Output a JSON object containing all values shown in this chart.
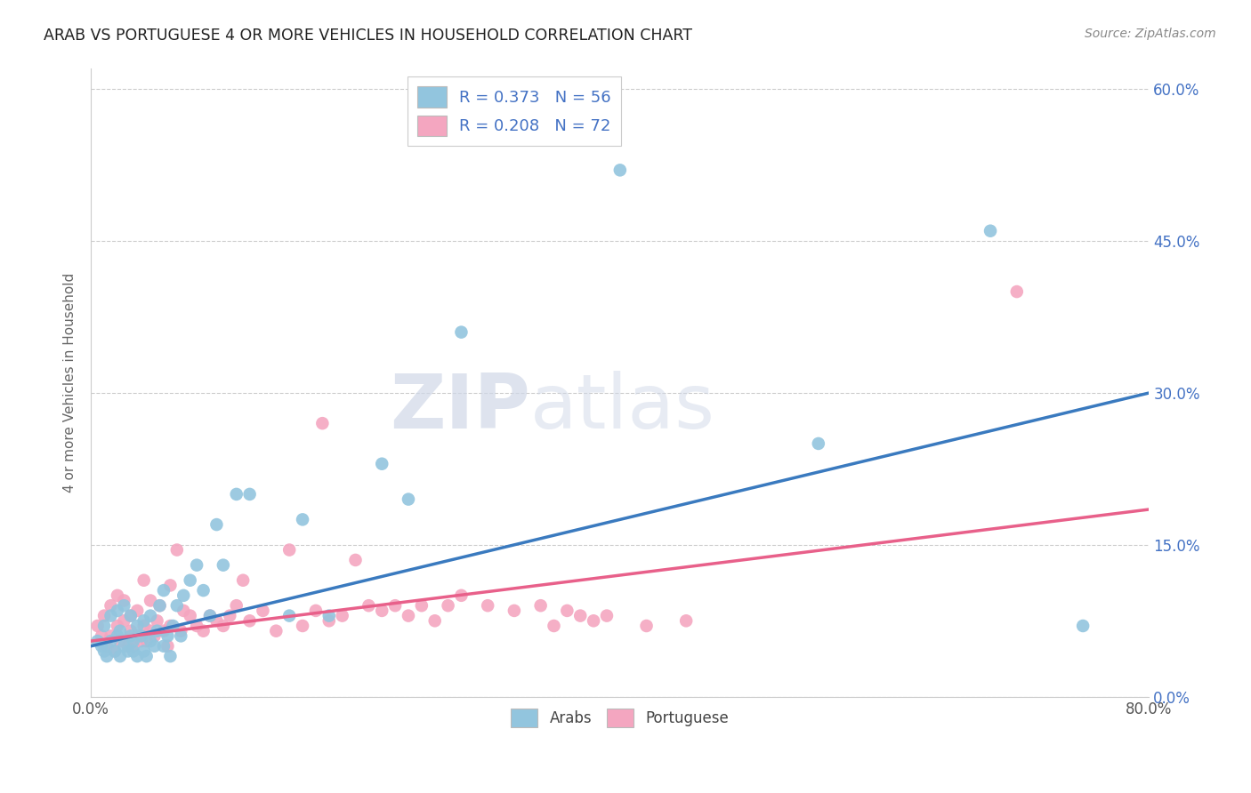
{
  "title": "ARAB VS PORTUGUESE 4 OR MORE VEHICLES IN HOUSEHOLD CORRELATION CHART",
  "source": "Source: ZipAtlas.com",
  "ylabel": "4 or more Vehicles in Household",
  "xlim": [
    0.0,
    0.8
  ],
  "ylim": [
    0.0,
    0.62
  ],
  "xtick_vals": [
    0.0,
    0.1,
    0.2,
    0.3,
    0.4,
    0.5,
    0.6,
    0.7,
    0.8
  ],
  "xtick_labels": [
    "0.0%",
    "",
    "",
    "",
    "",
    "",
    "",
    "",
    "80.0%"
  ],
  "ytick_vals": [
    0.0,
    0.15,
    0.3,
    0.45,
    0.6
  ],
  "ytick_labels": [
    "0.0%",
    "15.0%",
    "30.0%",
    "45.0%",
    "60.0%"
  ],
  "legend_arab": "R = 0.373   N = 56",
  "legend_port": "R = 0.208   N = 72",
  "arab_color": "#92c5de",
  "port_color": "#f4a6c0",
  "arab_line_color": "#3a7abf",
  "port_line_color": "#e8608a",
  "watermark_zip": "ZIP",
  "watermark_atlas": "atlas",
  "arab_scatter_x": [
    0.005,
    0.008,
    0.01,
    0.01,
    0.012,
    0.015,
    0.015,
    0.018,
    0.02,
    0.02,
    0.022,
    0.022,
    0.025,
    0.025,
    0.028,
    0.03,
    0.03,
    0.032,
    0.032,
    0.035,
    0.035,
    0.038,
    0.04,
    0.04,
    0.042,
    0.045,
    0.045,
    0.048,
    0.05,
    0.052,
    0.055,
    0.055,
    0.058,
    0.06,
    0.062,
    0.065,
    0.068,
    0.07,
    0.075,
    0.08,
    0.085,
    0.09,
    0.095,
    0.1,
    0.11,
    0.12,
    0.15,
    0.16,
    0.18,
    0.22,
    0.24,
    0.28,
    0.4,
    0.55,
    0.68,
    0.75
  ],
  "arab_scatter_y": [
    0.055,
    0.05,
    0.045,
    0.07,
    0.04,
    0.055,
    0.08,
    0.045,
    0.06,
    0.085,
    0.04,
    0.065,
    0.05,
    0.09,
    0.045,
    0.06,
    0.08,
    0.045,
    0.055,
    0.07,
    0.04,
    0.06,
    0.045,
    0.075,
    0.04,
    0.055,
    0.08,
    0.05,
    0.065,
    0.09,
    0.05,
    0.105,
    0.06,
    0.04,
    0.07,
    0.09,
    0.06,
    0.1,
    0.115,
    0.13,
    0.105,
    0.08,
    0.17,
    0.13,
    0.2,
    0.2,
    0.08,
    0.175,
    0.08,
    0.23,
    0.195,
    0.36,
    0.52,
    0.25,
    0.46,
    0.07
  ],
  "port_scatter_x": [
    0.005,
    0.008,
    0.01,
    0.012,
    0.015,
    0.015,
    0.018,
    0.02,
    0.02,
    0.022,
    0.025,
    0.025,
    0.028,
    0.03,
    0.03,
    0.032,
    0.035,
    0.035,
    0.038,
    0.04,
    0.04,
    0.042,
    0.045,
    0.045,
    0.048,
    0.05,
    0.052,
    0.055,
    0.058,
    0.06,
    0.06,
    0.065,
    0.068,
    0.07,
    0.075,
    0.08,
    0.085,
    0.09,
    0.095,
    0.1,
    0.105,
    0.11,
    0.115,
    0.12,
    0.13,
    0.14,
    0.15,
    0.16,
    0.17,
    0.175,
    0.18,
    0.19,
    0.2,
    0.21,
    0.22,
    0.23,
    0.24,
    0.25,
    0.26,
    0.27,
    0.28,
    0.3,
    0.32,
    0.34,
    0.35,
    0.36,
    0.37,
    0.38,
    0.39,
    0.42,
    0.45,
    0.7
  ],
  "port_scatter_y": [
    0.07,
    0.06,
    0.08,
    0.05,
    0.06,
    0.09,
    0.045,
    0.07,
    0.1,
    0.055,
    0.075,
    0.095,
    0.05,
    0.065,
    0.08,
    0.05,
    0.06,
    0.085,
    0.055,
    0.07,
    0.115,
    0.055,
    0.065,
    0.095,
    0.06,
    0.075,
    0.09,
    0.065,
    0.05,
    0.07,
    0.11,
    0.145,
    0.065,
    0.085,
    0.08,
    0.07,
    0.065,
    0.08,
    0.075,
    0.07,
    0.08,
    0.09,
    0.115,
    0.075,
    0.085,
    0.065,
    0.145,
    0.07,
    0.085,
    0.27,
    0.075,
    0.08,
    0.135,
    0.09,
    0.085,
    0.09,
    0.08,
    0.09,
    0.075,
    0.09,
    0.1,
    0.09,
    0.085,
    0.09,
    0.07,
    0.085,
    0.08,
    0.075,
    0.08,
    0.07,
    0.075,
    0.4
  ],
  "arab_line_x0": 0.0,
  "arab_line_y0": 0.05,
  "arab_line_x1": 0.8,
  "arab_line_y1": 0.3,
  "port_line_x0": 0.0,
  "port_line_y0": 0.055,
  "port_line_x1": 0.8,
  "port_line_y1": 0.185
}
